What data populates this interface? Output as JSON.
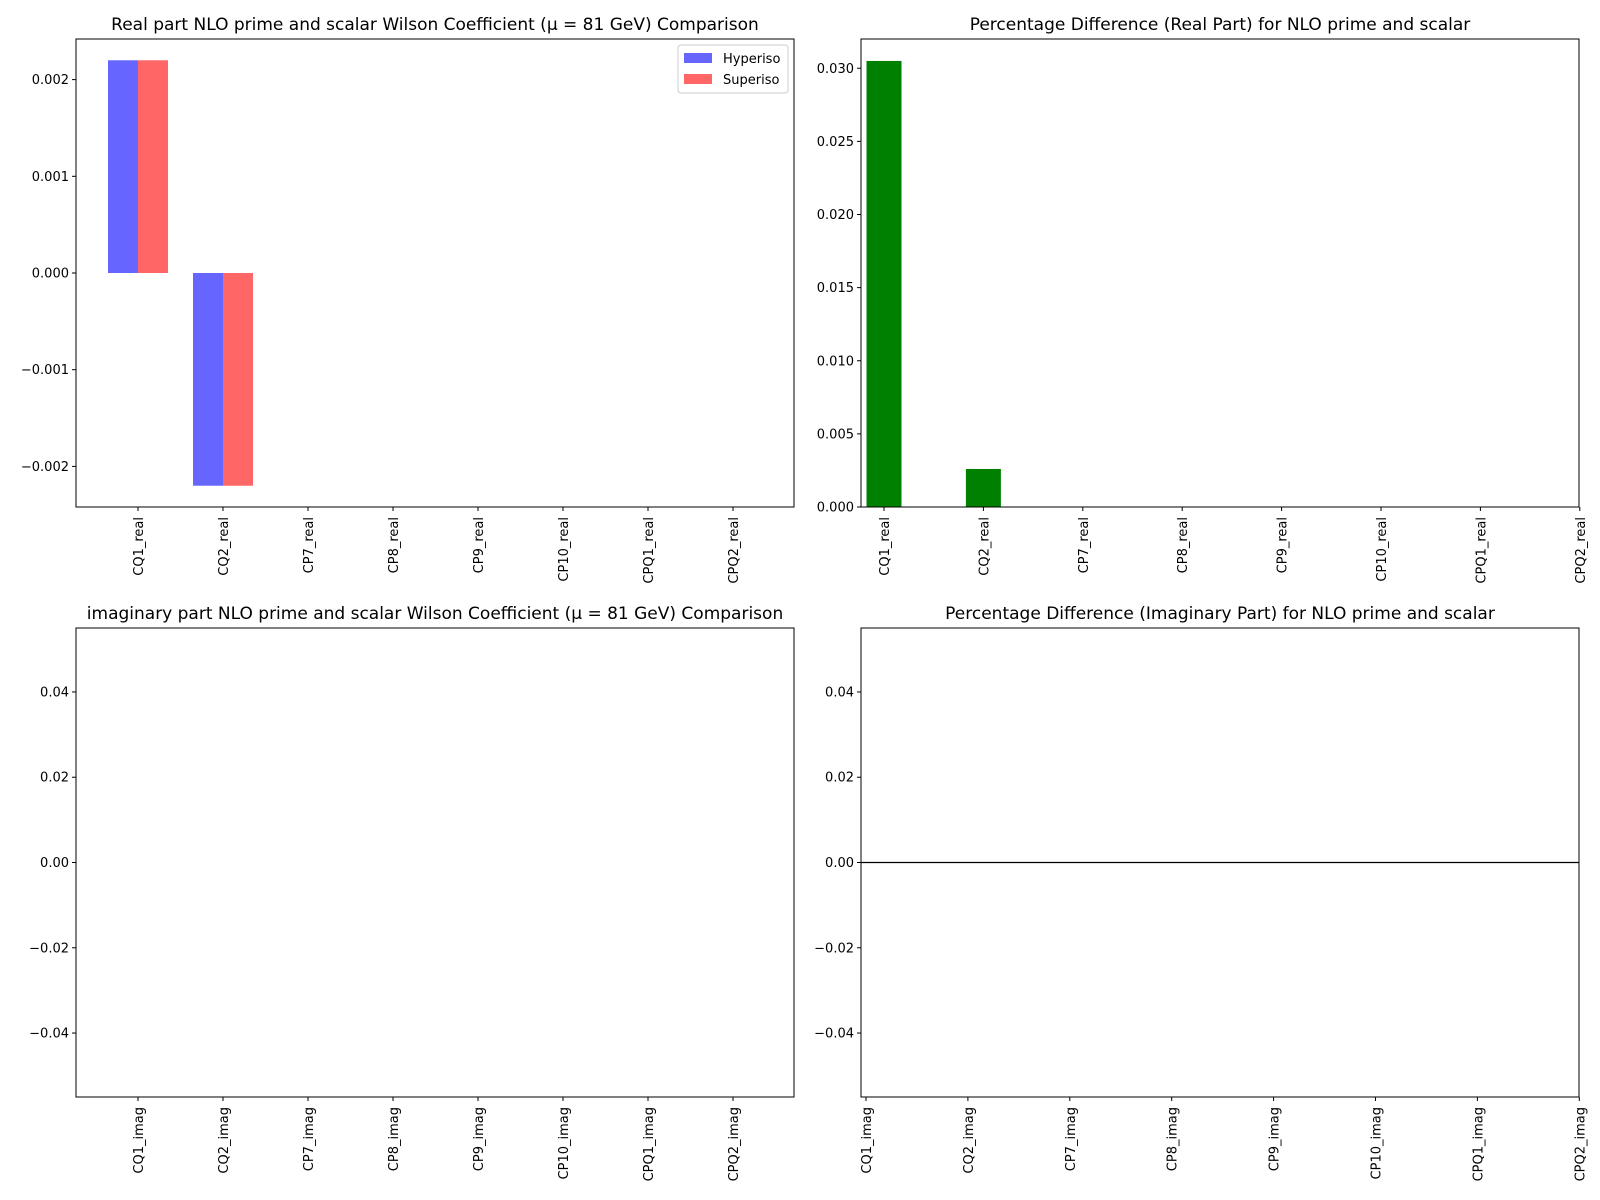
{
  "chart_data": [
    {
      "type": "bar",
      "title": "Real part NLO prime and scalar Wilson Coefficient (μ = 81 GeV) Comparison",
      "categories": [
        "CQ1_real",
        "CQ2_real",
        "CP7_real",
        "CP8_real",
        "CP9_real",
        "CP10_real",
        "CPQ1_real",
        "CPQ2_real"
      ],
      "series": [
        {
          "name": "Hyperiso",
          "color": "#6666ff",
          "values": [
            0.0022,
            -0.0022,
            0,
            0,
            0,
            0,
            0,
            0
          ]
        },
        {
          "name": "Superiso",
          "color": "#ff6666",
          "values": [
            0.0022,
            -0.0022,
            0,
            0,
            0,
            0,
            0,
            0
          ]
        }
      ],
      "yticks": [
        "0.002",
        "0.001",
        "0.000",
        "−0.001",
        "−0.002"
      ],
      "ylim": [
        -0.00242,
        0.00242
      ],
      "legend": "top-right",
      "grid": false
    },
    {
      "type": "bar",
      "title": "Percentage Difference (Real Part) for NLO prime and scalar",
      "categories": [
        "CQ1_real",
        "CQ2_real",
        "CP7_real",
        "CP8_real",
        "CP9_real",
        "CP10_real",
        "CPQ1_real",
        "CPQ2_real"
      ],
      "series": [
        {
          "color": "#008000",
          "values": [
            0.0305,
            0.0026,
            0,
            0,
            0,
            0,
            0,
            0
          ]
        }
      ],
      "yticks": [
        "0.000",
        "0.005",
        "0.010",
        "0.015",
        "0.020",
        "0.025",
        "0.030"
      ],
      "ylim": [
        0,
        0.032
      ],
      "grid": false
    },
    {
      "type": "bar",
      "title": "imaginary part NLO prime and scalar Wilson Coefficient (μ = 81 GeV) Comparison",
      "categories": [
        "CQ1_imag",
        "CQ2_imag",
        "CP7_imag",
        "CP8_imag",
        "CP9_imag",
        "CP10_imag",
        "CPQ1_imag",
        "CPQ2_imag"
      ],
      "series": [
        {
          "color": "#6666ff",
          "values": [
            0,
            0,
            0,
            0,
            0,
            0,
            0,
            0
          ]
        },
        {
          "color": "#ff6666",
          "values": [
            0,
            0,
            0,
            0,
            0,
            0,
            0,
            0
          ]
        }
      ],
      "yticks": [
        "0.04",
        "0.02",
        "0.00",
        "−0.02",
        "−0.04"
      ],
      "ylim": [
        -0.055,
        0.055
      ],
      "grid": false
    },
    {
      "type": "line",
      "title": "Percentage Difference (Imaginary Part) for NLO prime and scalar",
      "categories": [
        "CQ1_imag",
        "CQ2_imag",
        "CP7_imag",
        "CP8_imag",
        "CP9_imag",
        "CP10_imag",
        "CPQ1_imag",
        "CPQ2_imag"
      ],
      "series": [
        {
          "color": "#000000",
          "values": [
            0,
            0,
            0,
            0,
            0,
            0,
            0,
            0
          ]
        }
      ],
      "yticks": [
        "0.04",
        "0.02",
        "0.00",
        "−0.02",
        "−0.04"
      ],
      "ylim": [
        -0.055,
        0.055
      ],
      "grid": false
    }
  ]
}
